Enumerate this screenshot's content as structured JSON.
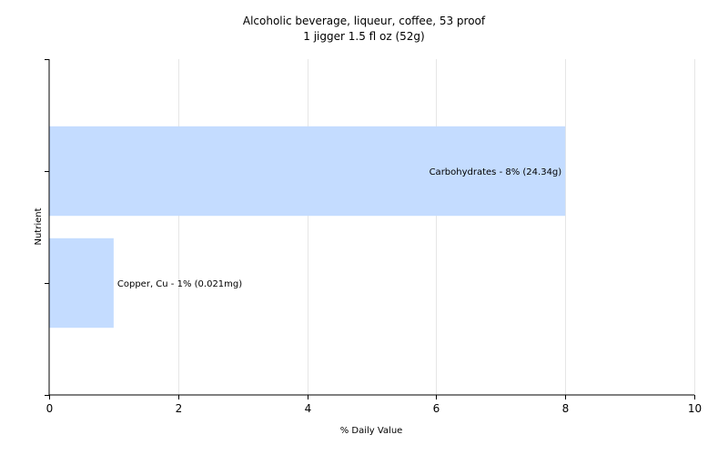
{
  "chart_data": {
    "type": "bar",
    "orientation": "horizontal",
    "title": "Alcoholic beverage, liqueur, coffee, 53 proof",
    "subtitle": "1 jigger 1.5 fl oz (52g)",
    "xlabel": "% Daily Value",
    "ylabel": "Nutrient",
    "xlim": [
      0,
      10
    ],
    "xticks": [
      0,
      2,
      4,
      6,
      8,
      10
    ],
    "grid": true,
    "legend": "none",
    "colors": {
      "bar": "#c4dcff",
      "grid": "#e6e6e6",
      "axis": "#000000"
    },
    "categories": [
      "Carbohydrates",
      "Copper, Cu"
    ],
    "values": [
      8,
      1
    ],
    "labels": [
      "Carbohydrates - 8% (24.34g)",
      "Copper, Cu - 1% (0.021mg)"
    ]
  }
}
